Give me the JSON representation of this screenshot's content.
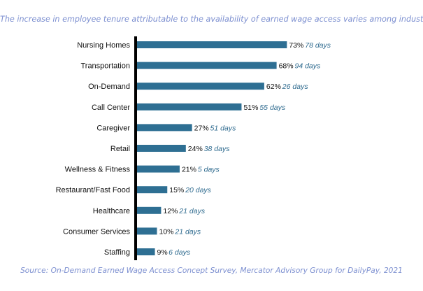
{
  "header": {
    "title": "The increase in employee tenure attributable to the availability of earned wage access varies among industry."
  },
  "footer": {
    "source": "Source: On-Demand Earned Wage Access Concept Survey, Mercator Advisory Group for DailyPay, 2021"
  },
  "colors": {
    "bar": "#2e6f93",
    "axis": "#000000",
    "days": "#2f6b8f",
    "title": "#7c8fd0"
  },
  "chart_data": {
    "type": "bar",
    "orientation": "horizontal",
    "title": "The increase in employee tenure attributable to the availability of earned wage access varies among industry.",
    "categories": [
      "Nursing Homes",
      "Transportation",
      "On-Demand",
      "Call Center",
      "Caregiver",
      "Retail",
      "Wellness & Fitness",
      "Restaurant/Fast Food",
      "Healthcare",
      "Consumer Services",
      "Staffing"
    ],
    "values": [
      73,
      68,
      62,
      51,
      27,
      24,
      21,
      15,
      12,
      10,
      9
    ],
    "value_labels": [
      "73%",
      "68%",
      "62%",
      "51%",
      "27%",
      "24%",
      "21%",
      "15%",
      "12%",
      "10%",
      "9%"
    ],
    "days_labels": [
      "78 days",
      "94 days",
      "26 days",
      "55 days",
      "51 days",
      "38 days",
      "5 days",
      "20 days",
      "21 days",
      "21 days",
      "6 days"
    ],
    "xlim": [
      0,
      100
    ],
    "grid": false,
    "legend": "none"
  }
}
